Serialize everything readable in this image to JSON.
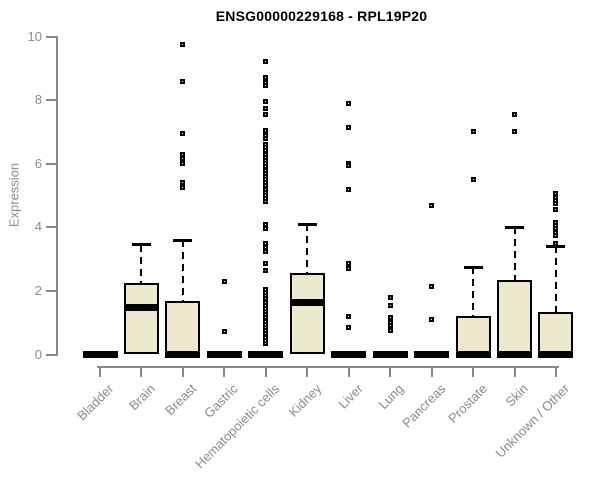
{
  "title": "ENSG00000229168 - RPL19P20",
  "chart_data": {
    "type": "boxplot",
    "title": "ENSG00000229168 - RPL19P20",
    "xlabel": "",
    "ylabel": "Expression",
    "ylim": [
      0,
      10
    ],
    "yticks": [
      0,
      2,
      4,
      6,
      8,
      10
    ],
    "grid": false,
    "legend": "none",
    "box_fill": "#ede9cf",
    "box_stroke": "#000000",
    "axis_color": "#878787",
    "label_color": "#8b8b8b",
    "categories": [
      "Bladder",
      "Brain",
      "Breast",
      "Gastric",
      "Hematopoietic cells",
      "Kidney",
      "Liver",
      "Lung",
      "Pancreas",
      "Prostate",
      "Skin",
      "Unknown / Other"
    ],
    "series": [
      {
        "category": "Bladder",
        "q1": 0,
        "median": 0,
        "q3": 0,
        "whisker_low": 0,
        "whisker_high": 0,
        "outliers": []
      },
      {
        "category": "Brain",
        "q1": 0,
        "median": 1.48,
        "q3": 2.25,
        "whisker_low": 0,
        "whisker_high": 3.45,
        "outliers": []
      },
      {
        "category": "Breast",
        "q1": 0,
        "median": 0,
        "q3": 1.67,
        "whisker_low": 0,
        "whisker_high": 3.6,
        "outliers": [
          9.75,
          8.6,
          6.95,
          6.3,
          6.15,
          6.0,
          5.4,
          5.25
        ]
      },
      {
        "category": "Gastric",
        "q1": 0,
        "median": 0,
        "q3": 0,
        "whisker_low": 0,
        "whisker_high": 0,
        "outliers": [
          2.3,
          0.73
        ]
      },
      {
        "category": "Hematopoietic cells",
        "q1": 0,
        "median": 0,
        "q3": 0,
        "whisker_low": 0,
        "whisker_high": 0,
        "outliers": [
          9.2,
          8.7,
          8.55,
          8.45,
          7.95,
          7.75,
          7.55,
          7.05,
          6.9,
          6.8,
          6.6,
          6.5,
          6.4,
          6.3,
          6.2,
          6.1,
          6.0,
          5.9,
          5.8,
          5.7,
          5.6,
          5.5,
          5.4,
          5.3,
          5.2,
          5.1,
          5.0,
          4.9,
          4.8,
          4.1,
          3.95,
          3.5,
          3.35,
          3.25,
          2.85,
          2.65,
          2.05,
          1.95,
          1.85,
          1.75,
          1.65,
          1.55,
          1.45,
          1.35,
          1.25,
          1.15,
          1.05,
          0.95,
          0.85,
          0.75,
          0.65,
          0.55,
          0.45,
          0.35
        ]
      },
      {
        "category": "Kidney",
        "q1": 0,
        "median": 1.65,
        "q3": 2.55,
        "whisker_low": 0,
        "whisker_high": 4.1,
        "outliers": []
      },
      {
        "category": "Liver",
        "q1": 0,
        "median": 0,
        "q3": 0,
        "whisker_low": 0,
        "whisker_high": 0,
        "outliers": [
          7.9,
          7.15,
          6.0,
          5.95,
          5.2,
          2.85,
          2.7,
          1.2,
          0.85
        ]
      },
      {
        "category": "Lung",
        "q1": 0,
        "median": 0,
        "q3": 0,
        "whisker_low": 0,
        "whisker_high": 0,
        "outliers": [
          1.8,
          1.55,
          1.15,
          1.0,
          0.9,
          0.75
        ]
      },
      {
        "category": "Pancreas",
        "q1": 0,
        "median": 0,
        "q3": 0,
        "whisker_low": 0,
        "whisker_high": 0,
        "outliers": [
          4.7,
          2.15,
          1.1
        ]
      },
      {
        "category": "Prostate",
        "q1": 0,
        "median": 0,
        "q3": 1.22,
        "whisker_low": 0,
        "whisker_high": 2.75,
        "outliers": [
          7.0,
          5.5
        ]
      },
      {
        "category": "Skin",
        "q1": 0,
        "median": 0,
        "q3": 2.33,
        "whisker_low": 0,
        "whisker_high": 4.0,
        "outliers": [
          7.55,
          7.0
        ]
      },
      {
        "category": "Unknown / Other",
        "q1": 0,
        "median": 0,
        "q3": 1.35,
        "whisker_low": 0,
        "whisker_high": 3.4,
        "outliers": [
          5.05,
          4.95,
          4.85,
          4.75,
          4.55,
          4.15,
          4.05,
          3.95,
          3.85,
          3.75,
          3.5
        ]
      }
    ]
  }
}
